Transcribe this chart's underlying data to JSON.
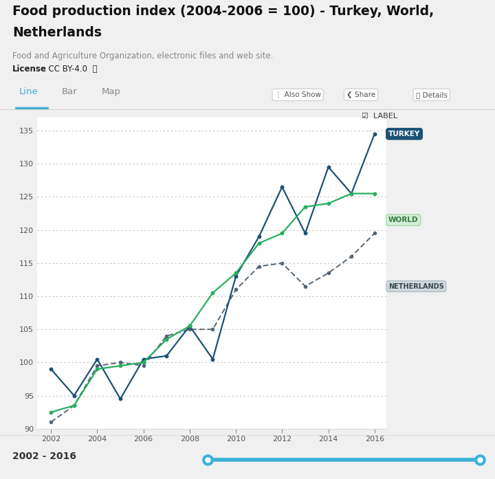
{
  "title_line1": "Food production index (2004-2006 = 100) - Turkey, World,",
  "title_line2": "Netherlands",
  "source": "Food and Agriculture Organization, electronic files and web site.",
  "license_bold": "License",
  "license_rest": " : CC BY-4.0  ⓘ",
  "years": [
    2002,
    2003,
    2004,
    2005,
    2006,
    2007,
    2008,
    2009,
    2010,
    2011,
    2012,
    2013,
    2014,
    2015,
    2016
  ],
  "turkey": [
    99.0,
    95.0,
    100.5,
    94.5,
    100.5,
    101.0,
    105.5,
    100.5,
    113.0,
    119.0,
    126.5,
    119.5,
    129.5,
    125.5,
    134.5
  ],
  "world": [
    92.5,
    93.5,
    99.0,
    99.5,
    100.0,
    103.5,
    105.5,
    110.5,
    113.5,
    118.0,
    119.5,
    123.5,
    124.0,
    125.5,
    125.5
  ],
  "netherlands": [
    91.0,
    93.5,
    99.5,
    100.0,
    99.5,
    104.0,
    105.0,
    105.0,
    111.0,
    114.5,
    115.0,
    111.5,
    113.5,
    116.0,
    119.5
  ],
  "turkey_color": "#1a5276",
  "world_color": "#27ae60",
  "netherlands_color": "#566573",
  "bg_color": "#f0f0f0",
  "chart_bg": "#ffffff",
  "tab_bg": "#ffffff",
  "grid_color": "#c0c0c0",
  "ylim": [
    90,
    137
  ],
  "yticks": [
    90,
    95,
    100,
    105,
    110,
    115,
    120,
    125,
    130,
    135
  ],
  "xticks": [
    2002,
    2004,
    2006,
    2008,
    2010,
    2012,
    2014,
    2016
  ],
  "tab_labels": [
    "Line",
    "Bar",
    "Map"
  ],
  "active_tab": "Line",
  "btn_labels": [
    "⋮ Also Show",
    "❮ Share",
    "ⓘ Details"
  ],
  "range_label": "2002 - 2016"
}
